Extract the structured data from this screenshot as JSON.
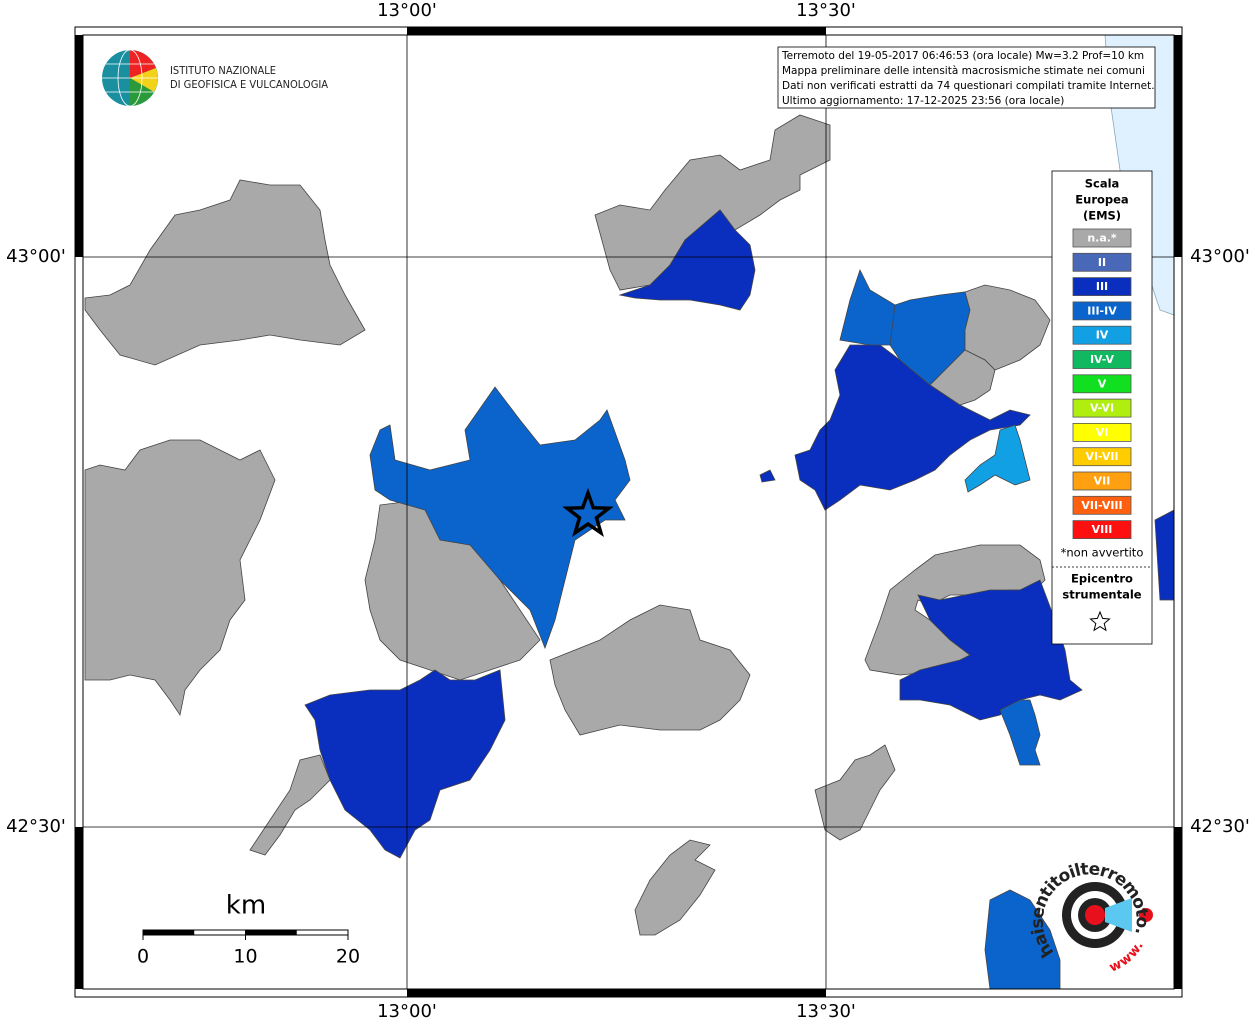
{
  "map": {
    "lon_labels": [
      "13°00'",
      "13°30'"
    ],
    "lat_labels": [
      "43°00'",
      "42°30'"
    ],
    "info": [
      "Terremoto del 19-05-2017 06:46:53 (ora locale) Mw=3.2 Prof=10 km",
      "Mappa preliminare delle intensità macrosismiche stimate nei comuni",
      "Dati non verificati estratti da 74 questionari compilati tramite Internet.",
      "Ultimo aggiornamento: 17-12-2025 23:56 (ora locale)"
    ],
    "institute": [
      "ISTITUTO NAZIONALE",
      "DI GEOFISICA E VULCANOLOGIA"
    ],
    "legend": {
      "title": [
        "Scala",
        "Europea",
        "(EMS)"
      ],
      "items": [
        {
          "label": "n.a.*",
          "color": "#a9a9a9"
        },
        {
          "label": "II",
          "color": "#4a68b8"
        },
        {
          "label": "III",
          "color": "#0a2ebd"
        },
        {
          "label": "III-IV",
          "color": "#0a64cc"
        },
        {
          "label": "IV",
          "color": "#12a0e4"
        },
        {
          "label": "IV-V",
          "color": "#10b860"
        },
        {
          "label": "V",
          "color": "#10e020"
        },
        {
          "label": "V-VI",
          "color": "#b0ee10"
        },
        {
          "label": "VI",
          "color": "#ffff00"
        },
        {
          "label": "VI-VII",
          "color": "#ffcc00"
        },
        {
          "label": "VII",
          "color": "#ffa010"
        },
        {
          "label": "VII-VIII",
          "color": "#ff6010"
        },
        {
          "label": "VIII",
          "color": "#ff1010"
        }
      ],
      "note": "*non avvertito",
      "epicenter": [
        "Epicentro",
        "strumentale"
      ]
    },
    "scale": {
      "unit": "km",
      "labels": [
        0,
        10,
        20
      ]
    },
    "logo": {
      "site": "haisentitoilterremoto.it",
      "www": "www."
    }
  }
}
